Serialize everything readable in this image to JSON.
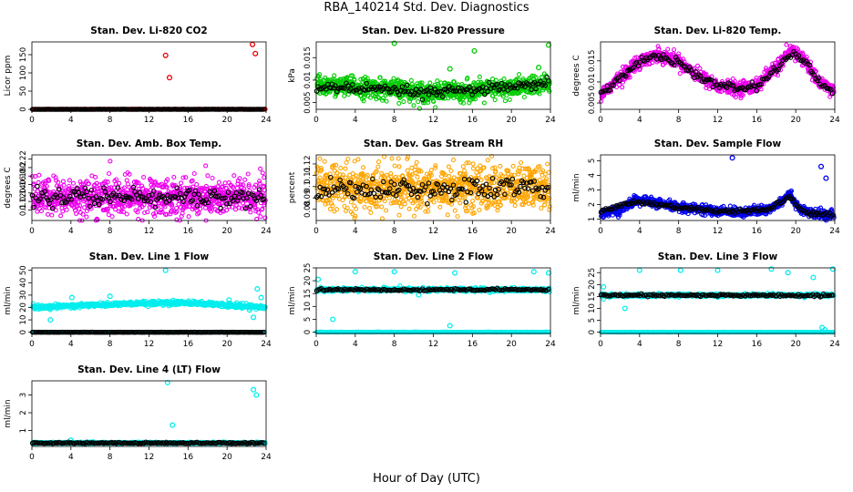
{
  "page": {
    "title": "RBA_140214  Std. Dev. Diagnostics",
    "xlabel": "Hour of Day (UTC)"
  },
  "colors": {
    "red": "#ee0000",
    "green": "#00cc00",
    "magenta": "#ee00ee",
    "orange": "#ffa500",
    "blue": "#0000ee",
    "cyan": "#00eeee",
    "black": "#000000"
  },
  "chart_data": [
    {
      "type": "scatter",
      "title": "Stan. Dev. Li-820 CO2",
      "ylabel": "Licor ppm",
      "xlim": [
        0,
        24
      ],
      "ylim": [
        0,
        185
      ],
      "xticks": [
        0,
        4,
        8,
        12,
        16,
        20,
        24
      ],
      "yticks": [
        0,
        50,
        100,
        150
      ],
      "series": [
        {
          "color": "red",
          "baseline": 0,
          "noise": 0.5,
          "outliers": [
            [
              13.7,
              148
            ],
            [
              14.1,
              87
            ],
            [
              22.6,
              178
            ],
            [
              22.9,
              153
            ]
          ]
        },
        {
          "color": "black",
          "baseline": 0,
          "noise": 0.3
        }
      ]
    },
    {
      "type": "scatter",
      "title": "Stan. Dev. Li-820 Pressure",
      "ylabel": "kPa",
      "xlim": [
        0,
        24
      ],
      "ylim": [
        0.0035,
        0.0185
      ],
      "xticks": [
        0,
        4,
        8,
        12,
        16,
        20,
        24
      ],
      "yticks": [
        0.005,
        0.01,
        0.015
      ],
      "series": [
        {
          "color": "green",
          "baseline": [
            [
              0,
              0.0088
            ],
            [
              6,
              0.0082
            ],
            [
              12,
              0.0072
            ],
            [
              18,
              0.0078
            ],
            [
              24,
              0.0092
            ]
          ],
          "noise": 0.0025,
          "outliers": [
            [
              8,
              0.0182
            ],
            [
              13.7,
              0.0125
            ],
            [
              16.2,
              0.0165
            ],
            [
              22.8,
              0.0128
            ],
            [
              23.8,
              0.0178
            ]
          ]
        },
        {
          "color": "black",
          "baseline": [
            [
              0,
              0.0085
            ],
            [
              12,
              0.0072
            ],
            [
              24,
              0.009
            ]
          ],
          "noise": 0.0012
        }
      ]
    },
    {
      "type": "scatter",
      "title": "Stan. Dev. Li-820 Temp.",
      "ylabel": "degrees C",
      "xlim": [
        0,
        24
      ],
      "ylim": [
        0.0035,
        0.0195
      ],
      "xticks": [
        0,
        4,
        8,
        12,
        16,
        20,
        24
      ],
      "yticks": [
        0.005,
        0.01,
        0.015
      ],
      "series": [
        {
          "color": "magenta",
          "baseline": [
            [
              0,
              0.007
            ],
            [
              2,
              0.011
            ],
            [
              4,
              0.015
            ],
            [
              6,
              0.0165
            ],
            [
              8,
              0.015
            ],
            [
              10,
              0.0115
            ],
            [
              12,
              0.009
            ],
            [
              14,
              0.0085
            ],
            [
              16,
              0.009
            ],
            [
              18,
              0.0135
            ],
            [
              19.7,
              0.0175
            ],
            [
              21,
              0.015
            ],
            [
              22,
              0.011
            ],
            [
              24,
              0.0075
            ]
          ],
          "noise": 0.0018
        },
        {
          "color": "black",
          "baseline": [
            [
              0,
              0.007
            ],
            [
              2,
              0.011
            ],
            [
              4,
              0.015
            ],
            [
              6,
              0.016
            ],
            [
              8,
              0.0145
            ],
            [
              10,
              0.0115
            ],
            [
              12,
              0.009
            ],
            [
              14,
              0.0085
            ],
            [
              16,
              0.009
            ],
            [
              18,
              0.013
            ],
            [
              19.7,
              0.017
            ],
            [
              21,
              0.0145
            ],
            [
              22,
              0.011
            ],
            [
              24,
              0.0075
            ]
          ],
          "noise": 0.001
        }
      ]
    },
    {
      "type": "scatter",
      "title": "Stan. Dev. Amb. Box Temp.",
      "ylabel": "degrees C",
      "xlim": [
        0,
        24
      ],
      "ylim": [
        0.075,
        0.23
      ],
      "xticks": [
        0,
        4,
        8,
        12,
        16,
        20,
        24
      ],
      "yticks": [
        0.1,
        0.12,
        0.14,
        0.16,
        0.18,
        0.2,
        0.22
      ],
      "series": [
        {
          "color": "magenta",
          "baseline": 0.13,
          "noise": 0.05
        },
        {
          "color": "black",
          "baseline": 0.13,
          "noise": 0.025
        }
      ]
    },
    {
      "type": "scatter",
      "title": "Stan. Dev. Gas Stream RH",
      "ylabel": "percent",
      "xlim": [
        0,
        24
      ],
      "ylim": [
        0.07,
        0.128
      ],
      "xticks": [
        0,
        4,
        8,
        12,
        16,
        20,
        24
      ],
      "yticks": [
        0.08,
        0.09,
        0.1,
        0.11,
        0.12
      ],
      "series": [
        {
          "color": "orange",
          "baseline": 0.099,
          "noise": 0.022
        },
        {
          "color": "black",
          "baseline": 0.098,
          "noise": 0.01
        }
      ]
    },
    {
      "type": "scatter",
      "title": "Stan. Dev. Sample Flow",
      "ylabel": "ml/min",
      "xlim": [
        0,
        24
      ],
      "ylim": [
        0.9,
        5.4
      ],
      "xticks": [
        0,
        4,
        8,
        12,
        16,
        20,
        24
      ],
      "yticks": [
        1,
        2,
        3,
        4,
        5
      ],
      "series": [
        {
          "color": "blue",
          "baseline": [
            [
              0,
              1.4
            ],
            [
              2,
              1.6
            ],
            [
              3.5,
              2.3
            ],
            [
              5,
              2.2
            ],
            [
              7,
              1.9
            ],
            [
              10,
              1.7
            ],
            [
              12,
              1.5
            ],
            [
              15,
              1.5
            ],
            [
              17,
              1.6
            ],
            [
              18.5,
              2.2
            ],
            [
              19.3,
              2.8
            ],
            [
              20.5,
              1.6
            ],
            [
              22,
              1.3
            ],
            [
              24,
              1.3
            ]
          ],
          "noise": 0.35,
          "outliers": [
            [
              13.5,
              5.2
            ],
            [
              22.6,
              4.6
            ],
            [
              23.1,
              3.8
            ]
          ]
        },
        {
          "color": "black",
          "baseline": [
            [
              0,
              1.5
            ],
            [
              3.5,
              2.2
            ],
            [
              7,
              1.9
            ],
            [
              12,
              1.5
            ],
            [
              17,
              1.6
            ],
            [
              19.3,
              2.5
            ],
            [
              21,
              1.4
            ],
            [
              24,
              1.3
            ]
          ],
          "noise": 0.15
        }
      ]
    },
    {
      "type": "scatter",
      "title": "Stan. Dev. Line 1 Flow",
      "ylabel": "ml/min",
      "xlim": [
        0,
        24
      ],
      "ylim": [
        -1,
        52
      ],
      "xticks": [
        0,
        4,
        8,
        12,
        16,
        20,
        24
      ],
      "yticks": [
        0,
        10,
        20,
        30,
        40,
        50
      ],
      "series": [
        {
          "color": "cyan",
          "baseline": [
            [
              0,
              20
            ],
            [
              6,
              22
            ],
            [
              12,
              23.5
            ],
            [
              16,
              24
            ],
            [
              20,
              22
            ],
            [
              24,
              20
            ]
          ],
          "noise": 2,
          "outliers": [
            [
              1.9,
              10
            ],
            [
              4.1,
              28
            ],
            [
              8,
              29
            ],
            [
              13.7,
              50
            ],
            [
              22.3,
              18
            ],
            [
              22.7,
              12
            ],
            [
              23.1,
              35
            ],
            [
              23.5,
              28
            ],
            [
              20.2,
              26
            ]
          ],
          "extra_baseline": 0
        },
        {
          "color": "black",
          "baseline": 0,
          "noise": 0.1
        }
      ]
    },
    {
      "type": "scatter",
      "title": "Stan. Dev. Line 2 Flow",
      "ylabel": "ml/min",
      "xlim": [
        0,
        24
      ],
      "ylim": [
        -0.5,
        25
      ],
      "xticks": [
        0,
        4,
        8,
        12,
        16,
        20,
        24
      ],
      "yticks": [
        0,
        5,
        10,
        15,
        20,
        25
      ],
      "series": [
        {
          "color": "cyan",
          "baseline": 16.5,
          "noise": 0.8,
          "outliers": [
            [
              0.2,
              20.5
            ],
            [
              1.7,
              5
            ],
            [
              4,
              23.5
            ],
            [
              8,
              23.5
            ],
            [
              10.5,
              14.5
            ],
            [
              13.7,
              2.5
            ],
            [
              14.2,
              23
            ],
            [
              17.8,
              15.5
            ],
            [
              22.3,
              23.5
            ],
            [
              23.8,
              23
            ]
          ],
          "extra_baseline": 0
        },
        {
          "color": "black",
          "baseline": 16.5,
          "noise": 0.5
        }
      ]
    },
    {
      "type": "scatter",
      "title": "Stan. Dev. Line 3 Flow",
      "ylabel": "ml/min",
      "xlim": [
        0,
        24
      ],
      "ylim": [
        -0.5,
        27
      ],
      "xticks": [
        0,
        4,
        8,
        12,
        16,
        20,
        24
      ],
      "yticks": [
        0,
        5,
        10,
        15,
        20,
        25
      ],
      "series": [
        {
          "color": "cyan",
          "baseline": 15.5,
          "noise": 0.8,
          "outliers": [
            [
              0.3,
              19
            ],
            [
              2.5,
              10
            ],
            [
              4,
              26
            ],
            [
              8.2,
              26
            ],
            [
              12,
              26
            ],
            [
              17.5,
              26.5
            ],
            [
              19.2,
              25
            ],
            [
              21.8,
              23
            ],
            [
              23.8,
              26.5
            ],
            [
              22.7,
              2
            ],
            [
              23,
              1
            ]
          ],
          "extra_baseline": 0
        },
        {
          "color": "black",
          "baseline": 15.5,
          "noise": 0.5
        }
      ]
    },
    {
      "type": "scatter",
      "title": "Stan. Dev. Line 4 (LT) Flow",
      "ylabel": "ml/min",
      "xlim": [
        0,
        24
      ],
      "ylim": [
        0.1,
        3.8
      ],
      "xticks": [
        0,
        4,
        8,
        12,
        16,
        20,
        24
      ],
      "yticks": [
        1,
        2,
        3
      ],
      "series": [
        {
          "color": "cyan",
          "baseline": 0.3,
          "noise": 0.05,
          "outliers": [
            [
              4,
              0.45
            ],
            [
              13.9,
              3.7
            ],
            [
              14.4,
              1.3
            ],
            [
              22.7,
              3.3
            ],
            [
              23.0,
              3.0
            ]
          ]
        },
        {
          "color": "black",
          "baseline": 0.3,
          "noise": 0.04
        }
      ]
    }
  ]
}
